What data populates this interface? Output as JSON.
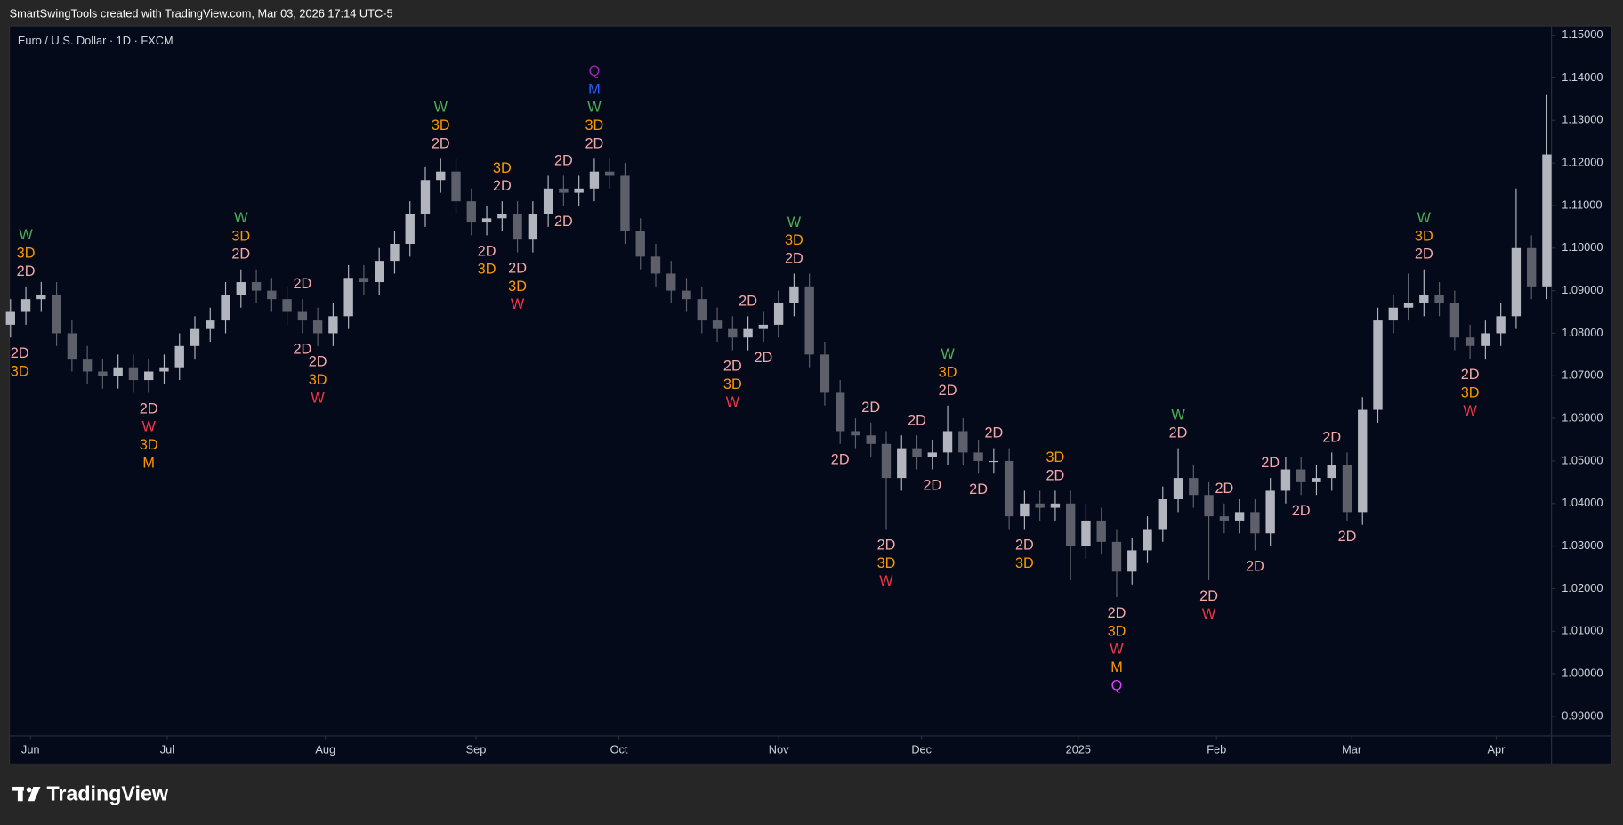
{
  "chart_data": {
    "type": "candlestick",
    "caption": "SmartSwingTools created with TradingView.com, Mar 03, 2026 17:14 UTC-5",
    "title": "Euro / U.S. Dollar · 1D · FXCM",
    "up_color": "#b2b5be",
    "down_color": "#5d606b",
    "open": [
      1.082,
      1.085,
      1.088,
      1.089,
      1.08,
      1.074,
      1.071,
      1.07,
      1.072,
      1.069,
      1.071,
      1.072,
      1.077,
      1.081,
      1.083,
      1.089,
      1.092,
      1.09,
      1.088,
      1.085,
      1.083,
      1.08,
      1.084,
      1.093,
      1.092,
      1.097,
      1.101,
      1.108,
      1.116,
      1.118,
      1.111,
      1.106,
      1.107,
      1.108,
      1.102,
      1.108,
      1.114,
      1.113,
      1.114,
      1.118,
      1.117,
      1.104,
      1.098,
      1.094,
      1.09,
      1.088,
      1.083,
      1.081,
      1.079,
      1.081,
      1.082,
      1.087,
      1.091,
      1.075,
      1.066,
      1.057,
      1.056,
      1.054,
      1.046,
      1.053,
      1.051,
      1.052,
      1.057,
      1.052,
      1.05,
      1.05,
      1.037,
      1.04,
      1.039,
      1.04,
      1.03,
      1.036,
      1.031,
      1.024,
      1.029,
      1.034,
      1.041,
      1.046,
      1.042,
      1.037,
      1.036,
      1.038,
      1.033,
      1.043,
      1.048,
      1.045,
      1.046,
      1.049,
      1.038,
      1.062,
      1.083,
      1.086,
      1.087,
      1.089,
      1.087,
      1.079,
      1.077,
      1.08,
      1.084,
      1.1,
      1.091
    ],
    "high": [
      1.088,
      1.091,
      1.092,
      1.092,
      1.083,
      1.077,
      1.074,
      1.075,
      1.075,
      1.074,
      1.075,
      1.08,
      1.084,
      1.086,
      1.092,
      1.095,
      1.095,
      1.093,
      1.091,
      1.088,
      1.086,
      1.087,
      1.096,
      1.096,
      1.1,
      1.104,
      1.111,
      1.119,
      1.121,
      1.121,
      1.114,
      1.11,
      1.111,
      1.111,
      1.111,
      1.117,
      1.117,
      1.117,
      1.121,
      1.121,
      1.12,
      1.107,
      1.101,
      1.097,
      1.093,
      1.091,
      1.086,
      1.084,
      1.084,
      1.085,
      1.09,
      1.094,
      1.094,
      1.078,
      1.069,
      1.06,
      1.059,
      1.057,
      1.056,
      1.056,
      1.055,
      1.063,
      1.06,
      1.055,
      1.053,
      1.053,
      1.043,
      1.043,
      1.043,
      1.043,
      1.04,
      1.039,
      1.034,
      1.032,
      1.037,
      1.044,
      1.053,
      1.049,
      1.045,
      1.04,
      1.041,
      1.041,
      1.046,
      1.051,
      1.051,
      1.049,
      1.052,
      1.052,
      1.065,
      1.086,
      1.089,
      1.094,
      1.095,
      1.092,
      1.09,
      1.082,
      1.083,
      1.087,
      1.114,
      1.103,
      1.136
    ],
    "low": [
      1.079,
      1.082,
      1.085,
      1.077,
      1.071,
      1.068,
      1.067,
      1.067,
      1.066,
      1.066,
      1.068,
      1.069,
      1.074,
      1.078,
      1.08,
      1.086,
      1.087,
      1.085,
      1.082,
      1.08,
      1.077,
      1.077,
      1.081,
      1.089,
      1.089,
      1.094,
      1.098,
      1.105,
      1.113,
      1.108,
      1.103,
      1.103,
      1.104,
      1.099,
      1.099,
      1.105,
      1.11,
      1.11,
      1.111,
      1.114,
      1.101,
      1.095,
      1.091,
      1.087,
      1.085,
      1.08,
      1.078,
      1.076,
      1.076,
      1.078,
      1.079,
      1.084,
      1.072,
      1.063,
      1.054,
      1.053,
      1.051,
      1.034,
      1.043,
      1.048,
      1.048,
      1.049,
      1.049,
      1.047,
      1.047,
      1.034,
      1.034,
      1.036,
      1.036,
      1.022,
      1.027,
      1.028,
      1.018,
      1.021,
      1.026,
      1.031,
      1.038,
      1.039,
      1.022,
      1.033,
      1.033,
      1.029,
      1.03,
      1.04,
      1.042,
      1.042,
      1.043,
      1.036,
      1.035,
      1.059,
      1.08,
      1.083,
      1.084,
      1.084,
      1.076,
      1.074,
      1.074,
      1.077,
      1.081,
      1.088,
      1.088
    ],
    "close": [
      1.085,
      1.088,
      1.089,
      1.08,
      1.074,
      1.071,
      1.07,
      1.072,
      1.069,
      1.071,
      1.072,
      1.077,
      1.081,
      1.083,
      1.089,
      1.092,
      1.09,
      1.088,
      1.085,
      1.083,
      1.08,
      1.084,
      1.093,
      1.092,
      1.097,
      1.101,
      1.108,
      1.116,
      1.118,
      1.111,
      1.106,
      1.107,
      1.108,
      1.102,
      1.108,
      1.114,
      1.113,
      1.114,
      1.118,
      1.117,
      1.104,
      1.098,
      1.094,
      1.09,
      1.088,
      1.083,
      1.081,
      1.079,
      1.081,
      1.082,
      1.087,
      1.091,
      1.075,
      1.066,
      1.057,
      1.056,
      1.054,
      1.046,
      1.053,
      1.051,
      1.052,
      1.057,
      1.052,
      1.05,
      1.05,
      1.037,
      1.04,
      1.039,
      1.04,
      1.03,
      1.036,
      1.031,
      1.024,
      1.029,
      1.034,
      1.041,
      1.046,
      1.042,
      1.037,
      1.036,
      1.038,
      1.033,
      1.043,
      1.048,
      1.045,
      1.046,
      1.049,
      1.038,
      1.062,
      1.083,
      1.086,
      1.087,
      1.089,
      1.087,
      1.079,
      1.077,
      1.08,
      1.084,
      1.1,
      1.091,
      1.122
    ],
    "xlim": [
      -0.07,
      100.3
    ],
    "xticks": [
      {
        "value": 1.3,
        "label": "Jun"
      },
      {
        "value": 10.2,
        "label": "Jul"
      },
      {
        "value": 20.5,
        "label": "Aug"
      },
      {
        "value": 30.3,
        "label": "Sep"
      },
      {
        "value": 39.6,
        "label": "Oct"
      },
      {
        "value": 50,
        "label": "Nov"
      },
      {
        "value": 59.3,
        "label": "Dec"
      },
      {
        "value": 69.5,
        "label": "2025"
      },
      {
        "value": 78.5,
        "label": "Feb"
      },
      {
        "value": 87.3,
        "label": "Mar"
      },
      {
        "value": 96.7,
        "label": "Apr"
      }
    ],
    "ylim": [
      0.9854,
      1.1522
    ],
    "yticks": [
      {
        "value": 1.15,
        "label": "1.15000"
      },
      {
        "value": 1.14,
        "label": "1.14000"
      },
      {
        "value": 1.13,
        "label": "1.13000"
      },
      {
        "value": 1.12,
        "label": "1.12000"
      },
      {
        "value": 1.11,
        "label": "1.11000"
      },
      {
        "value": 1.1,
        "label": "1.10000"
      },
      {
        "value": 1.09,
        "label": "1.09000"
      },
      {
        "value": 1.08,
        "label": "1.08000"
      },
      {
        "value": 1.07,
        "label": "1.07000"
      },
      {
        "value": 1.06,
        "label": "1.06000"
      },
      {
        "value": 1.05,
        "label": "1.05000"
      },
      {
        "value": 1.04,
        "label": "1.04000"
      },
      {
        "value": 1.03,
        "label": "1.03000"
      },
      {
        "value": 1.02,
        "label": "1.02000"
      },
      {
        "value": 1.01,
        "label": "1.01000"
      },
      {
        "value": 1,
        "label": "1.00000"
      },
      {
        "value": 0.99,
        "label": "0.99000"
      }
    ],
    "annotations": [
      {
        "index": 1,
        "position": "above",
        "labels": [
          {
            "text": "W",
            "color": "#4caf50"
          },
          {
            "text": "3D",
            "color": "#ff9800"
          },
          {
            "text": "2D",
            "color": "#f7a8a8"
          }
        ]
      },
      {
        "index": 0,
        "position": "below",
        "labels": [
          {
            "text": "2D",
            "color": "#f7a8a8"
          },
          {
            "text": "3D",
            "color": "#ff9800"
          }
        ]
      },
      {
        "index": 9,
        "position": "below",
        "labels": [
          {
            "text": "2D",
            "color": "#f7a8a8"
          },
          {
            "text": "W",
            "color": "#f23645"
          },
          {
            "text": "3D",
            "color": "#ff9800"
          },
          {
            "text": "M",
            "color": "#ff9800"
          }
        ]
      },
      {
        "index": 15,
        "position": "above",
        "labels": [
          {
            "text": "W",
            "color": "#4caf50"
          },
          {
            "text": "3D",
            "color": "#ff9800"
          },
          {
            "text": "2D",
            "color": "#f7a8a8"
          }
        ]
      },
      {
        "index": 19,
        "position": "above",
        "labels": [
          {
            "text": "2D",
            "color": "#f7a8a8"
          }
        ]
      },
      {
        "index": 19,
        "position": "below",
        "labels": [
          {
            "text": "2D",
            "color": "#f7a8a8"
          }
        ]
      },
      {
        "index": 20,
        "position": "below",
        "labels": [
          {
            "text": "2D",
            "color": "#f7a8a8"
          },
          {
            "text": "3D",
            "color": "#ff9800"
          },
          {
            "text": "W",
            "color": "#f23645"
          }
        ]
      },
      {
        "index": 28,
        "position": "above",
        "labels": [
          {
            "text": "W",
            "color": "#4caf50"
          },
          {
            "text": "3D",
            "color": "#ff9800"
          },
          {
            "text": "2D",
            "color": "#f7a8a8"
          }
        ]
      },
      {
        "index": 31,
        "position": "below",
        "labels": [
          {
            "text": "2D",
            "color": "#f7a8a8"
          },
          {
            "text": "3D",
            "color": "#ff9800"
          }
        ]
      },
      {
        "index": 32,
        "position": "above",
        "labels": [
          {
            "text": "3D",
            "color": "#ff9800"
          },
          {
            "text": "2D",
            "color": "#f7a8a8"
          }
        ]
      },
      {
        "index": 33,
        "position": "below",
        "labels": [
          {
            "text": "2D",
            "color": "#f7a8a8"
          },
          {
            "text": "3D",
            "color": "#ff9800"
          },
          {
            "text": "W",
            "color": "#f23645"
          }
        ]
      },
      {
        "index": 36,
        "position": "above",
        "labels": [
          {
            "text": "2D",
            "color": "#f7a8a8"
          }
        ]
      },
      {
        "index": 36,
        "position": "below",
        "labels": [
          {
            "text": "2D",
            "color": "#f7a8a8"
          }
        ]
      },
      {
        "index": 38,
        "position": "above",
        "labels": [
          {
            "text": "Q",
            "color": "#9c27b0"
          },
          {
            "text": "M",
            "color": "#2962ff"
          },
          {
            "text": "W",
            "color": "#4caf50"
          },
          {
            "text": "3D",
            "color": "#ff9800"
          },
          {
            "text": "2D",
            "color": "#f7a8a8"
          }
        ]
      },
      {
        "index": 47,
        "position": "below",
        "labels": [
          {
            "text": "2D",
            "color": "#f7a8a8"
          },
          {
            "text": "3D",
            "color": "#ff9800"
          },
          {
            "text": "W",
            "color": "#f23645"
          }
        ]
      },
      {
        "index": 48,
        "position": "above",
        "labels": [
          {
            "text": "2D",
            "color": "#f7a8a8"
          }
        ]
      },
      {
        "index": 49,
        "position": "below",
        "labels": [
          {
            "text": "2D",
            "color": "#f7a8a8"
          }
        ]
      },
      {
        "index": 51,
        "position": "above",
        "labels": [
          {
            "text": "W",
            "color": "#4caf50"
          },
          {
            "text": "3D",
            "color": "#ff9800"
          },
          {
            "text": "2D",
            "color": "#f7a8a8"
          }
        ]
      },
      {
        "index": 54,
        "position": "below",
        "labels": [
          {
            "text": "2D",
            "color": "#f7a8a8"
          }
        ]
      },
      {
        "index": 56,
        "position": "above",
        "labels": [
          {
            "text": "2D",
            "color": "#f7a8a8"
          }
        ]
      },
      {
        "index": 57,
        "position": "below",
        "labels": [
          {
            "text": "2D",
            "color": "#f7a8a8"
          },
          {
            "text": "3D",
            "color": "#ff9800"
          },
          {
            "text": "W",
            "color": "#f23645"
          }
        ]
      },
      {
        "index": 59,
        "position": "above",
        "labels": [
          {
            "text": "2D",
            "color": "#f7a8a8"
          }
        ]
      },
      {
        "index": 60,
        "position": "below",
        "labels": [
          {
            "text": "2D",
            "color": "#f7a8a8"
          }
        ]
      },
      {
        "index": 61,
        "position": "above",
        "labels": [
          {
            "text": "W",
            "color": "#4caf50"
          },
          {
            "text": "3D",
            "color": "#ff9800"
          },
          {
            "text": "2D",
            "color": "#f7a8a8"
          }
        ]
      },
      {
        "index": 63,
        "position": "below",
        "labels": [
          {
            "text": "2D",
            "color": "#f7a8a8"
          }
        ]
      },
      {
        "index": 64,
        "position": "above",
        "labels": [
          {
            "text": "2D",
            "color": "#f7a8a8"
          }
        ]
      },
      {
        "index": 66,
        "position": "below",
        "labels": [
          {
            "text": "2D",
            "color": "#f7a8a8"
          },
          {
            "text": "3D",
            "color": "#ff9800"
          }
        ]
      },
      {
        "index": 68,
        "position": "above",
        "labels": [
          {
            "text": "3D",
            "color": "#ff9800"
          },
          {
            "text": "2D",
            "color": "#f7a8a8"
          }
        ]
      },
      {
        "index": 72,
        "position": "below",
        "labels": [
          {
            "text": "2D",
            "color": "#f7a8a8"
          },
          {
            "text": "3D",
            "color": "#ff9800"
          },
          {
            "text": "W",
            "color": "#f23645"
          },
          {
            "text": "M",
            "color": "#ff9800"
          },
          {
            "text": "Q",
            "color": "#e040fb"
          }
        ]
      },
      {
        "index": 76,
        "position": "above",
        "labels": [
          {
            "text": "W",
            "color": "#4caf50"
          },
          {
            "text": "2D",
            "color": "#f7a8a8"
          }
        ]
      },
      {
        "index": 78,
        "position": "below",
        "labels": [
          {
            "text": "2D",
            "color": "#f7a8a8"
          },
          {
            "text": "W",
            "color": "#f23645"
          }
        ]
      },
      {
        "index": 79,
        "position": "above",
        "labels": [
          {
            "text": "2D",
            "color": "#f7a8a8"
          }
        ]
      },
      {
        "index": 81,
        "position": "below",
        "labels": [
          {
            "text": "2D",
            "color": "#f7a8a8"
          }
        ]
      },
      {
        "index": 82,
        "position": "above",
        "labels": [
          {
            "text": "2D",
            "color": "#f7a8a8"
          }
        ]
      },
      {
        "index": 84,
        "position": "below",
        "labels": [
          {
            "text": "2D",
            "color": "#f7a8a8"
          }
        ]
      },
      {
        "index": 86,
        "position": "above",
        "labels": [
          {
            "text": "2D",
            "color": "#f7a8a8"
          }
        ]
      },
      {
        "index": 87,
        "position": "below",
        "labels": [
          {
            "text": "2D",
            "color": "#f7a8a8"
          }
        ]
      },
      {
        "index": 92,
        "position": "above",
        "labels": [
          {
            "text": "W",
            "color": "#4caf50"
          },
          {
            "text": "3D",
            "color": "#ff9800"
          },
          {
            "text": "2D",
            "color": "#f7a8a8"
          }
        ]
      },
      {
        "index": 95,
        "position": "below",
        "labels": [
          {
            "text": "2D",
            "color": "#f7a8a8"
          },
          {
            "text": "3D",
            "color": "#ff9800"
          },
          {
            "text": "W",
            "color": "#f23645"
          }
        ]
      }
    ]
  },
  "footer": {
    "brand": "TradingView"
  }
}
